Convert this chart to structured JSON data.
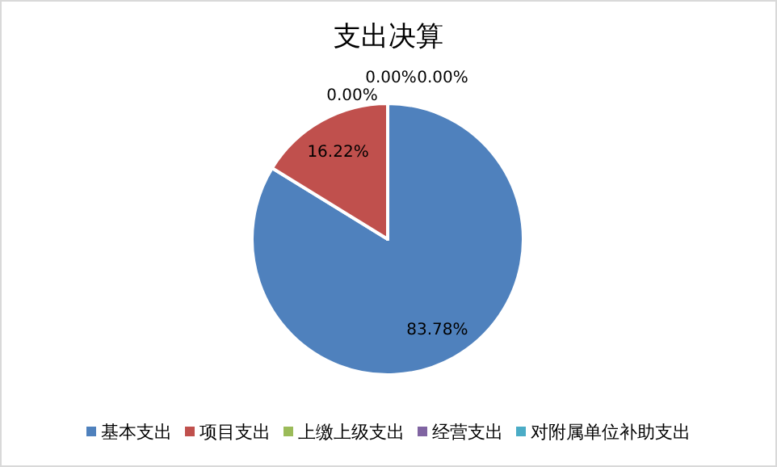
{
  "chart_data": {
    "type": "pie",
    "title": "支出决算",
    "categories": [
      "基本支出",
      "项目支出",
      "上缴上级支出",
      "经营支出",
      "对附属单位补助支出"
    ],
    "values": [
      83.78,
      16.22,
      0,
      0,
      0
    ],
    "colors": [
      "#4f81bd",
      "#c0504d",
      "#9bbb59",
      "#8064a2",
      "#4bacc6"
    ],
    "value_labels": [
      "83.78%",
      "16.22%",
      "0.00%",
      "0.00%",
      "0.00%"
    ],
    "legend": "bottom"
  }
}
